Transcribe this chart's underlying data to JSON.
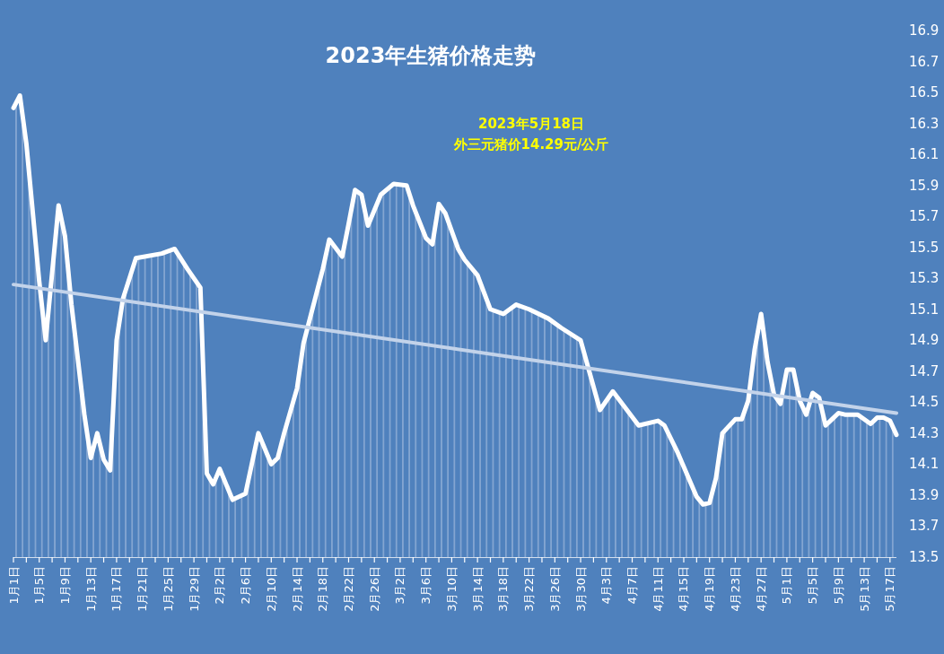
{
  "chart_data": {
    "type": "area",
    "title": "2023年生猪价格走势",
    "annotations": [
      "2023年5月18日",
      "外三元猪价14.29元/公斤"
    ],
    "xlim": [
      "2023-01-01",
      "2023-05-18"
    ],
    "ylim": [
      13.5,
      16.9
    ],
    "yticks": [
      13.5,
      13.7,
      13.9,
      14.1,
      14.3,
      14.5,
      14.7,
      14.9,
      15.1,
      15.3,
      15.5,
      15.7,
      15.9,
      16.1,
      16.3,
      16.5,
      16.7,
      16.9
    ],
    "xticks": [
      {
        "value": "2023-01-01",
        "label": "1月1日"
      },
      {
        "value": "2023-01-03",
        "label": null
      },
      {
        "value": "2023-01-05",
        "label": "1月5日"
      },
      {
        "value": "2023-01-07",
        "label": null
      },
      {
        "value": "2023-01-09",
        "label": "1月9日"
      },
      {
        "value": "2023-01-11",
        "label": null
      },
      {
        "value": "2023-01-13",
        "label": "1月13日"
      },
      {
        "value": "2023-01-15",
        "label": null
      },
      {
        "value": "2023-01-17",
        "label": "1月17日"
      },
      {
        "value": "2023-01-19",
        "label": null
      },
      {
        "value": "2023-01-21",
        "label": "1月21日"
      },
      {
        "value": "2023-01-23",
        "label": null
      },
      {
        "value": "2023-01-25",
        "label": "1月25日"
      },
      {
        "value": "2023-01-27",
        "label": null
      },
      {
        "value": "2023-01-29",
        "label": "1月29日"
      },
      {
        "value": "2023-01-31",
        "label": null
      },
      {
        "value": "2023-02-02",
        "label": "2月2日"
      },
      {
        "value": "2023-02-04",
        "label": null
      },
      {
        "value": "2023-02-06",
        "label": "2月6日"
      },
      {
        "value": "2023-02-08",
        "label": null
      },
      {
        "value": "2023-02-10",
        "label": "2月10日"
      },
      {
        "value": "2023-02-12",
        "label": null
      },
      {
        "value": "2023-02-14",
        "label": "2月14日"
      },
      {
        "value": "2023-02-16",
        "label": null
      },
      {
        "value": "2023-02-18",
        "label": "2月18日"
      },
      {
        "value": "2023-02-20",
        "label": null
      },
      {
        "value": "2023-02-22",
        "label": "2月22日"
      },
      {
        "value": "2023-02-24",
        "label": null
      },
      {
        "value": "2023-02-26",
        "label": "2月26日"
      },
      {
        "value": "2023-02-28",
        "label": null
      },
      {
        "value": "2023-03-02",
        "label": "3月2日"
      },
      {
        "value": "2023-03-04",
        "label": null
      },
      {
        "value": "2023-03-06",
        "label": "3月6日"
      },
      {
        "value": "2023-03-08",
        "label": null
      },
      {
        "value": "2023-03-10",
        "label": "3月10日"
      },
      {
        "value": "2023-03-12",
        "label": null
      },
      {
        "value": "2023-03-14",
        "label": "3月14日"
      },
      {
        "value": "2023-03-16",
        "label": null
      },
      {
        "value": "2023-03-18",
        "label": "3月18日"
      },
      {
        "value": "2023-03-20",
        "label": null
      },
      {
        "value": "2023-03-22",
        "label": "3月22日"
      },
      {
        "value": "2023-03-24",
        "label": null
      },
      {
        "value": "2023-03-26",
        "label": "3月26日"
      },
      {
        "value": "2023-03-28",
        "label": null
      },
      {
        "value": "2023-03-30",
        "label": "3月30日"
      },
      {
        "value": "2023-04-01",
        "label": null
      },
      {
        "value": "2023-04-03",
        "label": "4月3日"
      },
      {
        "value": "2023-04-05",
        "label": null
      },
      {
        "value": "2023-04-07",
        "label": "4月7日"
      },
      {
        "value": "2023-04-09",
        "label": null
      },
      {
        "value": "2023-04-11",
        "label": "4月11日"
      },
      {
        "value": "2023-04-13",
        "label": null
      },
      {
        "value": "2023-04-15",
        "label": "4月15日"
      },
      {
        "value": "2023-04-17",
        "label": null
      },
      {
        "value": "2023-04-19",
        "label": "4月19日"
      },
      {
        "value": "2023-04-21",
        "label": null
      },
      {
        "value": "2023-04-23",
        "label": "4月23日"
      },
      {
        "value": "2023-04-25",
        "label": null
      },
      {
        "value": "2023-04-27",
        "label": "4月27日"
      },
      {
        "value": "2023-04-29",
        "label": null
      },
      {
        "value": "2023-05-01",
        "label": "5月1日"
      },
      {
        "value": "2023-05-03",
        "label": null
      },
      {
        "value": "2023-05-05",
        "label": "5月5日"
      },
      {
        "value": "2023-05-07",
        "label": null
      },
      {
        "value": "2023-05-09",
        "label": "5月9日"
      },
      {
        "value": "2023-05-11",
        "label": null
      },
      {
        "value": "2023-05-13",
        "label": "5月13日"
      },
      {
        "value": "2023-05-15",
        "label": null
      },
      {
        "value": "2023-05-17",
        "label": "5月17日"
      }
    ],
    "series": [
      {
        "color": "#ffffff",
        "x": [
          "2023-01-01",
          "2023-01-02",
          "2023-01-03",
          "2023-01-05",
          "2023-01-06",
          "2023-01-08",
          "2023-01-09",
          "2023-01-10",
          "2023-01-12",
          "2023-01-13",
          "2023-01-14",
          "2023-01-15",
          "2023-01-16",
          "2023-01-17",
          "2023-01-18",
          "2023-01-20",
          "2023-01-24",
          "2023-01-26",
          "2023-01-28",
          "2023-01-30",
          "2023-01-31",
          "2023-02-01",
          "2023-02-02",
          "2023-02-04",
          "2023-02-06",
          "2023-02-08",
          "2023-02-10",
          "2023-02-11",
          "2023-02-12",
          "2023-02-14",
          "2023-02-15",
          "2023-02-18",
          "2023-02-19",
          "2023-02-21",
          "2023-02-22",
          "2023-02-23",
          "2023-02-24",
          "2023-02-25",
          "2023-02-27",
          "2023-03-01",
          "2023-03-03",
          "2023-03-04",
          "2023-03-06",
          "2023-03-07",
          "2023-03-08",
          "2023-03-09",
          "2023-03-11",
          "2023-03-12",
          "2023-03-14",
          "2023-03-16",
          "2023-03-18",
          "2023-03-20",
          "2023-03-22",
          "2023-03-25",
          "2023-03-27",
          "2023-03-30",
          "2023-04-02",
          "2023-04-04",
          "2023-04-08",
          "2023-04-11",
          "2023-04-12",
          "2023-04-14",
          "2023-04-17",
          "2023-04-18",
          "2023-04-19",
          "2023-04-20",
          "2023-04-21",
          "2023-04-23",
          "2023-04-24",
          "2023-04-25",
          "2023-04-26",
          "2023-04-27",
          "2023-04-28",
          "2023-04-29",
          "2023-04-30",
          "2023-05-01",
          "2023-05-02",
          "2023-05-03",
          "2023-05-04",
          "2023-05-05",
          "2023-05-06",
          "2023-05-07",
          "2023-05-08",
          "2023-05-09",
          "2023-05-10",
          "2023-05-12",
          "2023-05-14",
          "2023-05-15",
          "2023-05-16",
          "2023-05-17",
          "2023-05-18"
        ],
        "values": [
          16.4,
          16.48,
          16.17,
          15.28,
          14.9,
          15.77,
          15.57,
          15.13,
          14.42,
          14.14,
          14.3,
          14.13,
          14.06,
          14.9,
          15.17,
          15.43,
          15.46,
          15.49,
          15.36,
          15.24,
          14.04,
          13.97,
          14.07,
          13.87,
          13.91,
          14.3,
          14.1,
          14.14,
          14.3,
          14.59,
          14.88,
          15.36,
          15.55,
          15.44,
          15.65,
          15.87,
          15.84,
          15.64,
          15.84,
          15.91,
          15.9,
          15.77,
          15.56,
          15.52,
          15.78,
          15.72,
          15.49,
          15.42,
          15.32,
          15.1,
          15.07,
          15.13,
          15.1,
          15.04,
          14.98,
          14.9,
          14.45,
          14.57,
          14.35,
          14.38,
          14.35,
          14.18,
          13.89,
          13.84,
          13.85,
          14.01,
          14.3,
          14.39,
          14.39,
          14.51,
          14.84,
          15.07,
          14.76,
          14.55,
          14.49,
          14.71,
          14.71,
          14.51,
          14.42,
          14.56,
          14.53,
          14.35,
          14.39,
          14.43,
          14.42,
          14.42,
          14.36,
          14.4,
          14.4,
          14.38,
          14.29
        ]
      },
      {
        "type": "line",
        "color": "#c3d3ea",
        "x": [
          "2023-01-01",
          "2023-05-18"
        ],
        "values": [
          15.26,
          14.43
        ]
      }
    ]
  }
}
